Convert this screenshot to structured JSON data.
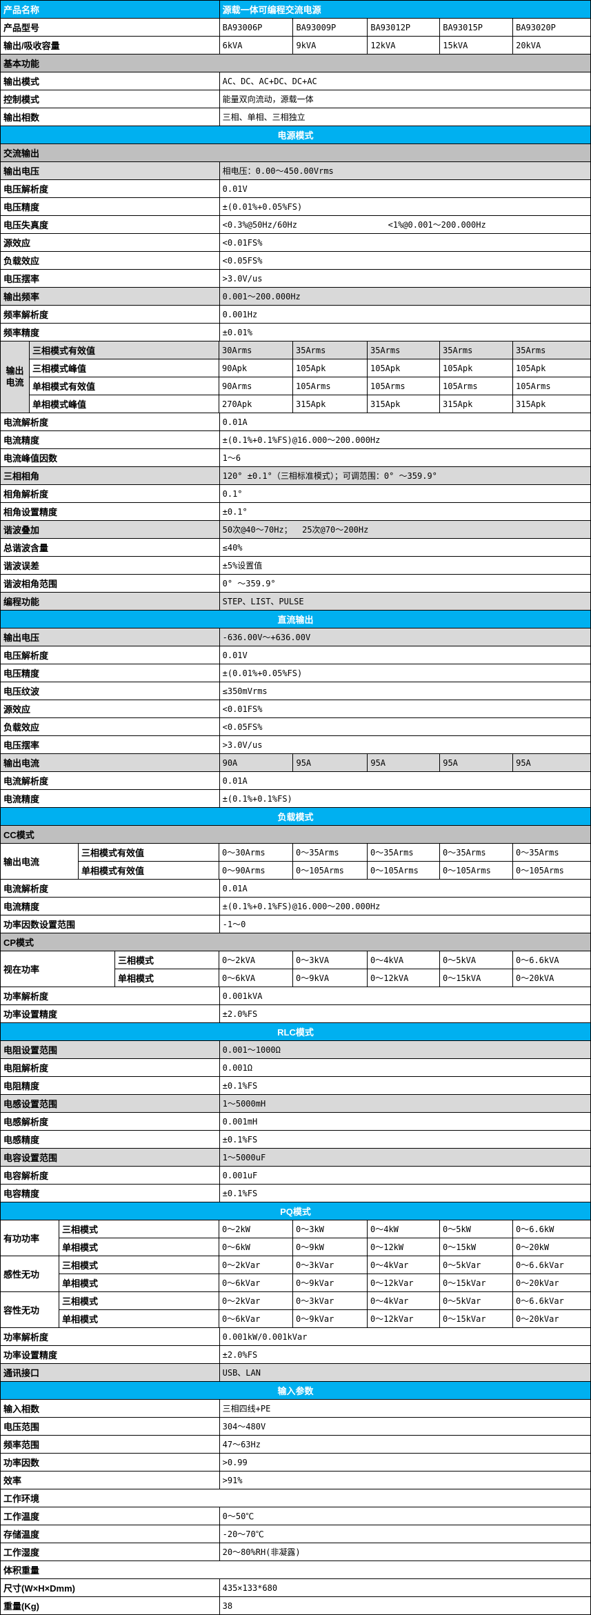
{
  "colors": {
    "band_blue": "#00B0F0",
    "section_gray": "#BFBFBF",
    "row_shade": "#D9D9D9",
    "border": "#000000",
    "band_text": "#FFFFFF"
  },
  "layout_note": "product specification sheet table",
  "rows": [
    {
      "t": "title",
      "label": "产品名称",
      "value": "源载一体可编程交流电源"
    },
    {
      "t": "vals",
      "label": "产品型号",
      "values": [
        "BA93006P",
        "BA93009P",
        "BA93012P",
        "BA93015P",
        "BA93020P"
      ]
    },
    {
      "t": "vals",
      "label": "输出/吸收容量",
      "values": [
        "6kVA",
        "9kVA",
        "12kVA",
        "15kVA",
        "20kVA"
      ]
    },
    {
      "t": "sec",
      "label": "基本功能",
      "bg": "gray"
    },
    {
      "t": "kv",
      "label": "输出模式",
      "value": "AC、DC、AC+DC、DC+AC"
    },
    {
      "t": "kv",
      "label": "控制模式",
      "value": "能量双向流动，源载一体"
    },
    {
      "t": "kv",
      "label": "输出相数",
      "value": "三相、单相、三相独立"
    },
    {
      "t": "band",
      "label": "电源模式"
    },
    {
      "t": "sec",
      "label": "交流输出",
      "bg": "gray"
    },
    {
      "t": "kv",
      "label": "输出电压",
      "value": "相电压：0.00～450.00Vrms",
      "shade": true
    },
    {
      "t": "kv",
      "label": "电压解析度",
      "value": "0.01V"
    },
    {
      "t": "kv",
      "label": "电压精度",
      "value": "±(0.01%+0.05%FS)"
    },
    {
      "t": "kv2",
      "label": "电压失真度",
      "value": "<0.3%@50Hz/60Hz",
      "value2": "<1%@0.001～200.000Hz"
    },
    {
      "t": "kv",
      "label": "源效应",
      "value": "<0.01FS%"
    },
    {
      "t": "kv",
      "label": "负载效应",
      "value": "<0.05FS%"
    },
    {
      "t": "kv",
      "label": "电压摆率",
      "value": ">3.0V/us"
    },
    {
      "t": "kv",
      "label": "输出频率",
      "value": "0.001～200.000Hz",
      "shade": true
    },
    {
      "t": "kv",
      "label": "频率解析度",
      "value": "0.001Hz"
    },
    {
      "t": "kv",
      "label": "频率精度",
      "value": "±0.01%"
    },
    {
      "t": "group",
      "label": "输出电流",
      "outer": 43,
      "outer_center": true,
      "outer_shade": true,
      "subs": [
        {
          "label": "三相模式有效值",
          "values": [
            "30Arms",
            "35Arms",
            "35Arms",
            "35Arms",
            "35Arms"
          ],
          "shade": true
        },
        {
          "label": "三相模式峰值",
          "values": [
            "90Apk",
            "105Apk",
            "105Apk",
            "105Apk",
            "105Apk"
          ]
        },
        {
          "label": "单相模式有效值",
          "values": [
            "90Arms",
            "105Arms",
            "105Arms",
            "105Arms",
            "105Arms"
          ]
        },
        {
          "label": "单相模式峰值",
          "values": [
            "270Apk",
            "315Apk",
            "315Apk",
            "315Apk",
            "315Apk"
          ]
        }
      ]
    },
    {
      "t": "kv",
      "label": "电流解析度",
      "value": "0.01A"
    },
    {
      "t": "kv",
      "label": "电流精度",
      "value": "±(0.1%+0.1%FS)@16.000～200.000Hz"
    },
    {
      "t": "kv",
      "label": "电流峰值因数",
      "value": "1～6"
    },
    {
      "t": "kv",
      "label": "三相相角",
      "value": "120° ±0.1°（三相标准模式）；可调范围：0° ～359.9°",
      "shade": true
    },
    {
      "t": "kv",
      "label": "相角解析度",
      "value": "0.1°"
    },
    {
      "t": "kv",
      "label": "相角设置精度",
      "value": "±0.1°"
    },
    {
      "t": "kv",
      "label": "谐波叠加",
      "value": "50次@40～70Hz；  25次@70～200Hz",
      "shade": true
    },
    {
      "t": "kv",
      "label": "总谐波含量",
      "value": "≤40%"
    },
    {
      "t": "kv",
      "label": "谐波误差",
      "value": "±5%设置值"
    },
    {
      "t": "kv",
      "label": "谐波相角范围",
      "value": "0° ～359.9°"
    },
    {
      "t": "kv",
      "label": "编程功能",
      "value": "STEP、LIST、PULSE",
      "shade": true
    },
    {
      "t": "band",
      "label": "直流输出"
    },
    {
      "t": "kv",
      "label": "输出电压",
      "value": "-636.00V～+636.00V",
      "shade": true
    },
    {
      "t": "kv",
      "label": "电压解析度",
      "value": "0.01V"
    },
    {
      "t": "kv",
      "label": "电压精度",
      "value": "±(0.01%+0.05%FS)"
    },
    {
      "t": "kv",
      "label": "电压纹波",
      "value": "≤350mVrms"
    },
    {
      "t": "kv",
      "label": "源效应",
      "value": "<0.01FS%"
    },
    {
      "t": "kv",
      "label": "负载效应",
      "value": "<0.05FS%"
    },
    {
      "t": "kv",
      "label": "电压摆率",
      "value": ">3.0V/us"
    },
    {
      "t": "vals",
      "label": "输出电流",
      "values": [
        "90A",
        "95A",
        "95A",
        "95A",
        "95A"
      ],
      "shade": true
    },
    {
      "t": "kv",
      "label": "电流解析度",
      "value": "0.01A"
    },
    {
      "t": "kv",
      "label": "电流精度",
      "value": "±(0.1%+0.1%FS)"
    },
    {
      "t": "band",
      "label": "负载模式"
    },
    {
      "t": "sec",
      "label": "CC模式",
      "bg": "gray"
    },
    {
      "t": "group",
      "label": "输出电流",
      "outer": 114,
      "subs": [
        {
          "label": "三相模式有效值",
          "values": [
            "0～30Arms",
            "0～35Arms",
            "0～35Arms",
            "0～35Arms",
            "0～35Arms"
          ]
        },
        {
          "label": "单相模式有效值",
          "values": [
            "0～90Arms",
            "0～105Arms",
            "0～105Arms",
            "0～105Arms",
            "0～105Arms"
          ]
        }
      ]
    },
    {
      "t": "kv",
      "label": "电流解析度",
      "value": "0.01A"
    },
    {
      "t": "kv",
      "label": "电流精度",
      "value": "±(0.1%+0.1%FS)@16.000～200.000Hz"
    },
    {
      "t": "kv",
      "label": "功率因数设置范围",
      "value": "-1～0"
    },
    {
      "t": "sec",
      "label": "CP模式",
      "bg": "gray"
    },
    {
      "t": "group",
      "label": "视在功率",
      "outer": 167,
      "subs": [
        {
          "label": "三相模式",
          "values": [
            "0～2kVA",
            "0～3kVA",
            "0～4kVA",
            "0～5kVA",
            "0～6.6kVA"
          ]
        },
        {
          "label": "单相模式",
          "values": [
            "0～6kVA",
            "0～9kVA",
            "0～12kVA",
            "0～15kVA",
            "0～20kVA"
          ]
        }
      ]
    },
    {
      "t": "kv",
      "label": "功率解析度",
      "value": "0.001kVA"
    },
    {
      "t": "kv",
      "label": "功率设置精度",
      "value": "±2.0%FS"
    },
    {
      "t": "band",
      "label": "RLC模式"
    },
    {
      "t": "kv",
      "label": "电阻设置范围",
      "value": "0.001～1000Ω",
      "shade": true
    },
    {
      "t": "kv",
      "label": "电阻解析度",
      "value": "0.001Ω"
    },
    {
      "t": "kv",
      "label": "电阻精度",
      "value": "±0.1%FS"
    },
    {
      "t": "kv",
      "label": "电感设置范围",
      "value": "1～5000mH",
      "shade": true
    },
    {
      "t": "kv",
      "label": "电感解析度",
      "value": "0.001mH"
    },
    {
      "t": "kv",
      "label": "电感精度",
      "value": "±0.1%FS"
    },
    {
      "t": "kv",
      "label": "电容设置范围",
      "value": "1～5000uF",
      "shade": true
    },
    {
      "t": "kv",
      "label": "电容解析度",
      "value": "0.001uF"
    },
    {
      "t": "kv",
      "label": "电容精度",
      "value": "±0.1%FS"
    },
    {
      "t": "band",
      "label": "PQ模式"
    },
    {
      "t": "group",
      "label": "有功功率",
      "outer": 86,
      "subs": [
        {
          "label": "三相模式",
          "values": [
            "0～2kW",
            "0～3kW",
            "0～4kW",
            "0～5kW",
            "0～6.6kW"
          ]
        },
        {
          "label": "单相模式",
          "values": [
            "0～6kW",
            "0～9kW",
            "0～12kW",
            "0～15kW",
            "0～20kW"
          ]
        }
      ]
    },
    {
      "t": "group",
      "label": "感性无功",
      "outer": 86,
      "subs": [
        {
          "label": "三相模式",
          "values": [
            "0～2kVar",
            "0～3kVar",
            "0～4kVar",
            "0～5kVar",
            "0～6.6kVar"
          ]
        },
        {
          "label": "单相模式",
          "values": [
            "0～6kVar",
            "0～9kVar",
            "0～12kVar",
            "0～15kVar",
            "0～20kVar"
          ]
        }
      ]
    },
    {
      "t": "group",
      "label": "容性无功",
      "outer": 86,
      "subs": [
        {
          "label": "三相模式",
          "values": [
            "0～2kVar",
            "0～3kVar",
            "0～4kVar",
            "0～5kVar",
            "0～6.6kVar"
          ]
        },
        {
          "label": "单相模式",
          "values": [
            "0～6kVar",
            "0～9kVar",
            "0～12kVar",
            "0～15kVar",
            "0～20kVar"
          ]
        }
      ]
    },
    {
      "t": "kv",
      "label": "功率解析度",
      "value": "0.001kW/0.001kVar"
    },
    {
      "t": "kv",
      "label": "功率设置精度",
      "value": "±2.0%FS"
    },
    {
      "t": "kv",
      "label": "通讯接口",
      "value": "USB、LAN",
      "shade": true
    },
    {
      "t": "band",
      "label": "输入参数"
    },
    {
      "t": "kv",
      "label": "输入相数",
      "value": "三相四线+PE"
    },
    {
      "t": "kv",
      "label": "电压范围",
      "value": "304～480V"
    },
    {
      "t": "kv",
      "label": "频率范围",
      "value": "47～63Hz"
    },
    {
      "t": "kv",
      "label": "功率因数",
      "value": ">0.99"
    },
    {
      "t": "kv",
      "label": "效率",
      "value": ">91%"
    },
    {
      "t": "sec",
      "label": "工作环境",
      "bg": "white"
    },
    {
      "t": "kv",
      "label": "工作温度",
      "value": "0～50℃"
    },
    {
      "t": "kv",
      "label": "存储温度",
      "value": "-20～70℃"
    },
    {
      "t": "kv",
      "label": "工作湿度",
      "value": "20～80%RH(非凝露)"
    },
    {
      "t": "sec",
      "label": "体积重量",
      "bg": "white"
    },
    {
      "t": "kv",
      "label": "尺寸(W×H×Dmm)",
      "value": "435×133*680"
    },
    {
      "t": "kv",
      "label": "重量(Kg)",
      "value": "38"
    }
  ]
}
